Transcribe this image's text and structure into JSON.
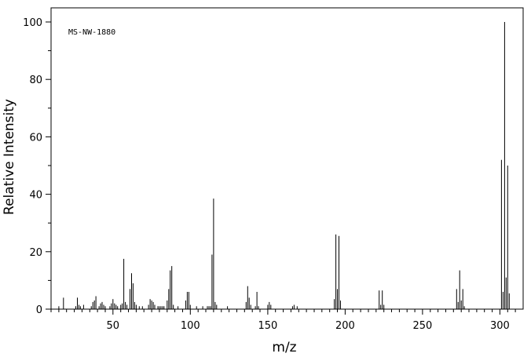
{
  "chart_data": {
    "type": "bar",
    "annotation": "MS-NW-1880",
    "xlabel": "m/z",
    "ylabel": "Relative Intensity",
    "xlim": [
      10,
      315
    ],
    "ylim": [
      0,
      105
    ],
    "x_ticks": [
      50,
      100,
      150,
      200,
      250,
      300
    ],
    "y_ticks": [
      0,
      20,
      40,
      60,
      80,
      100
    ],
    "grid": false,
    "peaks": [
      {
        "x": 15,
        "y": 1.0
      },
      {
        "x": 18,
        "y": 4.0
      },
      {
        "x": 26,
        "y": 1.0
      },
      {
        "x": 27,
        "y": 4.0
      },
      {
        "x": 28,
        "y": 1.5
      },
      {
        "x": 29,
        "y": 1.0
      },
      {
        "x": 31,
        "y": 1.5
      },
      {
        "x": 36,
        "y": 1.0
      },
      {
        "x": 37,
        "y": 2.5
      },
      {
        "x": 38,
        "y": 3.0
      },
      {
        "x": 39,
        "y": 4.5
      },
      {
        "x": 41,
        "y": 1.0
      },
      {
        "x": 42,
        "y": 2.0
      },
      {
        "x": 43,
        "y": 2.5
      },
      {
        "x": 44,
        "y": 1.5
      },
      {
        "x": 45,
        "y": 1.0
      },
      {
        "x": 48,
        "y": 1.0
      },
      {
        "x": 49,
        "y": 2.0
      },
      {
        "x": 50,
        "y": 3.5
      },
      {
        "x": 51,
        "y": 2.0
      },
      {
        "x": 52,
        "y": 1.5
      },
      {
        "x": 53,
        "y": 1.0
      },
      {
        "x": 55,
        "y": 1.5
      },
      {
        "x": 56,
        "y": 2.0
      },
      {
        "x": 57,
        "y": 17.5
      },
      {
        "x": 58,
        "y": 2.5
      },
      {
        "x": 59,
        "y": 1.5
      },
      {
        "x": 61,
        "y": 7.0
      },
      {
        "x": 62,
        "y": 12.5
      },
      {
        "x": 63,
        "y": 9.0
      },
      {
        "x": 64,
        "y": 2.5
      },
      {
        "x": 65,
        "y": 1.5
      },
      {
        "x": 67,
        "y": 1.0
      },
      {
        "x": 69,
        "y": 1.0
      },
      {
        "x": 73,
        "y": 1.5
      },
      {
        "x": 74,
        "y": 3.5
      },
      {
        "x": 75,
        "y": 3.0
      },
      {
        "x": 76,
        "y": 2.5
      },
      {
        "x": 77,
        "y": 1.5
      },
      {
        "x": 79,
        "y": 1.0
      },
      {
        "x": 80,
        "y": 1.0
      },
      {
        "x": 81,
        "y": 1.0
      },
      {
        "x": 82,
        "y": 1.0
      },
      {
        "x": 83,
        "y": 1.0
      },
      {
        "x": 85,
        "y": 3.0
      },
      {
        "x": 86,
        "y": 7.0
      },
      {
        "x": 87,
        "y": 13.5
      },
      {
        "x": 88,
        "y": 15.0
      },
      {
        "x": 89,
        "y": 1.5
      },
      {
        "x": 92,
        "y": 1.0
      },
      {
        "x": 97,
        "y": 3.0
      },
      {
        "x": 98,
        "y": 6.0
      },
      {
        "x": 99,
        "y": 6.0
      },
      {
        "x": 100,
        "y": 1.5
      },
      {
        "x": 104,
        "y": 1.0
      },
      {
        "x": 108,
        "y": 1.0
      },
      {
        "x": 111,
        "y": 1.0
      },
      {
        "x": 112,
        "y": 1.0
      },
      {
        "x": 113,
        "y": 1.0
      },
      {
        "x": 114,
        "y": 19.0
      },
      {
        "x": 115,
        "y": 38.5
      },
      {
        "x": 116,
        "y": 2.5
      },
      {
        "x": 117,
        "y": 1.5
      },
      {
        "x": 124,
        "y": 1.0
      },
      {
        "x": 136,
        "y": 2.5
      },
      {
        "x": 137,
        "y": 8.0
      },
      {
        "x": 138,
        "y": 4.0
      },
      {
        "x": 139,
        "y": 1.5
      },
      {
        "x": 142,
        "y": 1.0
      },
      {
        "x": 143,
        "y": 6.0
      },
      {
        "x": 144,
        "y": 1.0
      },
      {
        "x": 150,
        "y": 1.5
      },
      {
        "x": 151,
        "y": 2.5
      },
      {
        "x": 152,
        "y": 1.5
      },
      {
        "x": 166,
        "y": 1.0
      },
      {
        "x": 167,
        "y": 1.5
      },
      {
        "x": 169,
        "y": 1.0
      },
      {
        "x": 193,
        "y": 3.5
      },
      {
        "x": 194,
        "y": 26.0
      },
      {
        "x": 195,
        "y": 7.0
      },
      {
        "x": 196,
        "y": 25.5
      },
      {
        "x": 197,
        "y": 3.0
      },
      {
        "x": 222,
        "y": 6.5
      },
      {
        "x": 223,
        "y": 1.5
      },
      {
        "x": 224,
        "y": 6.5
      },
      {
        "x": 225,
        "y": 1.5
      },
      {
        "x": 272,
        "y": 7.0
      },
      {
        "x": 273,
        "y": 2.5
      },
      {
        "x": 274,
        "y": 13.5
      },
      {
        "x": 275,
        "y": 3.0
      },
      {
        "x": 276,
        "y": 7.0
      },
      {
        "x": 277,
        "y": 1.0
      },
      {
        "x": 301,
        "y": 52.0
      },
      {
        "x": 302,
        "y": 6.0
      },
      {
        "x": 303,
        "y": 100.0
      },
      {
        "x": 304,
        "y": 11.0
      },
      {
        "x": 305,
        "y": 50.0
      },
      {
        "x": 306,
        "y": 5.5
      }
    ]
  }
}
